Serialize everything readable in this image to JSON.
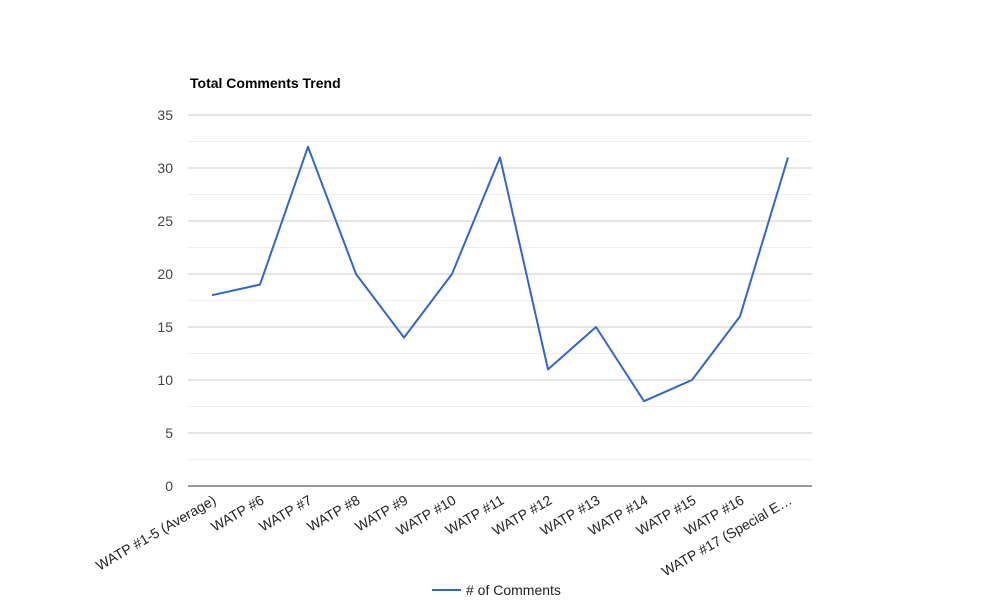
{
  "chart_data": {
    "type": "line",
    "title": "Total Comments Trend",
    "xlabel": "",
    "ylabel": "",
    "categories": [
      "WATP #1-5 (Average)",
      "WATP #6",
      "WATP #7",
      "WATP #8",
      "WATP #9",
      "WATP #10",
      "WATP #11",
      "WATP #12",
      "WATP #13",
      "WATP #14",
      "WATP #15",
      "WATP #16",
      "WATP #17 (Special E…"
    ],
    "series": [
      {
        "name": "# of Comments",
        "values": [
          18,
          19,
          32,
          20,
          14,
          20,
          31,
          11,
          15,
          8,
          10,
          16,
          31
        ],
        "color": "#3366cc"
      }
    ],
    "ylim": [
      0,
      35
    ],
    "yticks": [
      "0",
      "5",
      "10",
      "15",
      "20",
      "25",
      "30",
      "35"
    ],
    "grid": true,
    "legend": "bottom"
  }
}
